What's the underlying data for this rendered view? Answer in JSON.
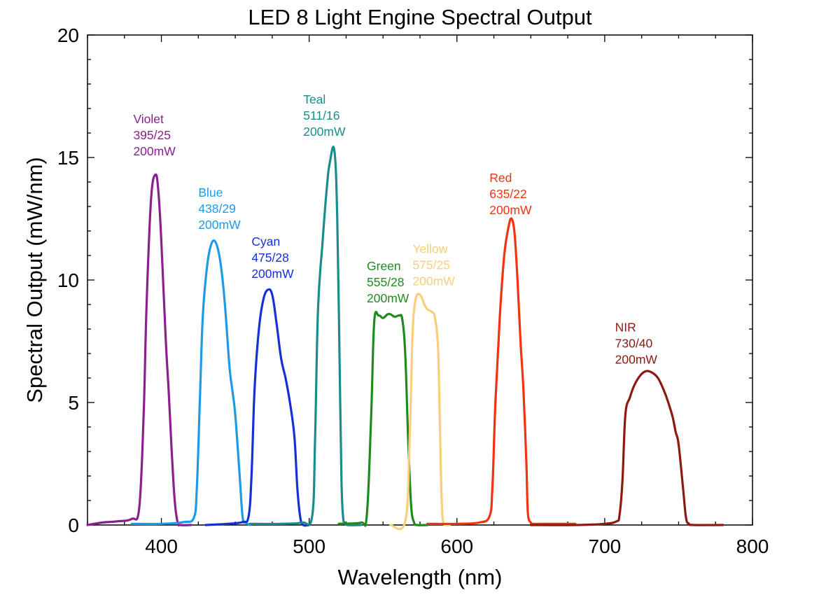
{
  "chart_data": {
    "type": "line",
    "title": "LED 8 Light Engine Spectral Output",
    "xlabel": "Wavelength (nm)",
    "ylabel": "Spectral Output (mW/nm)",
    "xlim": [
      350,
      800
    ],
    "ylim": [
      0,
      20
    ],
    "x_ticks": [
      400,
      500,
      600,
      700,
      800
    ],
    "y_ticks": [
      0,
      5,
      10,
      15,
      20
    ],
    "grid": false,
    "legend": "none",
    "series": [
      {
        "name": "Violet",
        "color": "#8B1F8E",
        "label_lines": [
          "Violet",
          "395/25",
          "200mW"
        ],
        "x": [
          350,
          360,
          370,
          380,
          385,
          388,
          390,
          393,
          396,
          398,
          400,
          403,
          405,
          407,
          409,
          411,
          413,
          420
        ],
        "y": [
          0,
          0.1,
          0.15,
          0.25,
          0.7,
          4.5,
          9.0,
          13.3,
          14.3,
          13.6,
          11.5,
          7.5,
          5.4,
          3.0,
          1.0,
          0.1,
          0,
          0
        ]
      },
      {
        "name": "Blue",
        "color": "#1E9BE8",
        "label_lines": [
          "Blue",
          "438/29",
          "200mW"
        ],
        "x": [
          380,
          400,
          415,
          422,
          424,
          426,
          428,
          431,
          434,
          437,
          440,
          443,
          446,
          448,
          450,
          453,
          455,
          457,
          460
        ],
        "y": [
          0.05,
          0.05,
          0.12,
          0.3,
          1.5,
          5.0,
          8.5,
          10.6,
          11.5,
          11.5,
          10.7,
          9.0,
          6.5,
          5.5,
          4.5,
          2.0,
          0.3,
          0.1,
          0
        ]
      },
      {
        "name": "Cyan",
        "color": "#1431D6",
        "label_lines": [
          "Cyan",
          "475/28",
          "200mW"
        ],
        "x": [
          430,
          445,
          455,
          459,
          461,
          463,
          466,
          469,
          472,
          475,
          478,
          481,
          484,
          487,
          490,
          492,
          494,
          496,
          500
        ],
        "y": [
          0,
          0.05,
          0.12,
          0.35,
          2.0,
          5.5,
          8.0,
          9.2,
          9.6,
          9.4,
          8.2,
          6.8,
          6.0,
          5.0,
          3.6,
          1.5,
          0.3,
          0,
          0
        ]
      },
      {
        "name": "Teal",
        "color": "#1A8C8C",
        "label_lines": [
          "Teal",
          "511/16",
          "200mW"
        ],
        "x": [
          460,
          480,
          495,
          502,
          504,
          506,
          509,
          512,
          514,
          517,
          519,
          521,
          522,
          523,
          524,
          526,
          535
        ],
        "y": [
          0.05,
          0.05,
          0.1,
          0.35,
          3.5,
          8.8,
          11.5,
          13.8,
          14.8,
          15.3,
          12.5,
          5.0,
          1.5,
          0.3,
          0.1,
          0,
          0
        ]
      },
      {
        "name": "Green",
        "color": "#1E8B1E",
        "label_lines": [
          "Green",
          "555/28",
          "200mW"
        ],
        "x": [
          520,
          535,
          539,
          542,
          544,
          547,
          550,
          553,
          555,
          558,
          561,
          563,
          565,
          567,
          569,
          571,
          573,
          580
        ],
        "y": [
          0.05,
          0.1,
          0.4,
          4.5,
          8.3,
          8.55,
          8.45,
          8.6,
          8.6,
          8.5,
          8.55,
          8.4,
          7.0,
          3.5,
          0.8,
          0.1,
          0,
          0
        ]
      },
      {
        "name": "Yellow",
        "color": "#F8CE7A",
        "label_lines": [
          "Yellow",
          "575/25",
          "200mW"
        ],
        "x": [
          555,
          565,
          568,
          570,
          572,
          575,
          578,
          580,
          583,
          585,
          587,
          588,
          589,
          590,
          591,
          592,
          595
        ],
        "y": [
          0,
          0.15,
          3.5,
          7.8,
          9.2,
          9.4,
          9.0,
          8.8,
          8.7,
          8.5,
          7.5,
          5.5,
          2.5,
          0.5,
          0.1,
          0,
          0
        ]
      },
      {
        "name": "Red",
        "color": "#F2330F",
        "label_lines": [
          "Red",
          "635/22",
          "200mW"
        ],
        "x": [
          580,
          600,
          615,
          622,
          624,
          626,
          629,
          632,
          635,
          637,
          639,
          641,
          643,
          645,
          647,
          648,
          650,
          652,
          660,
          680
        ],
        "y": [
          0.05,
          0.05,
          0.1,
          0.35,
          1.5,
          5.0,
          8.5,
          11.0,
          12.2,
          12.5,
          11.9,
          10.0,
          7.5,
          5.5,
          2.5,
          0.5,
          0.1,
          0.05,
          0.05,
          0.05
        ]
      },
      {
        "name": "NIR",
        "color": "#8B1A10",
        "label_lines": [
          "NIR",
          "730/40",
          "200mW"
        ],
        "x": [
          650,
          680,
          700,
          708,
          710,
          712,
          714,
          717,
          720,
          724,
          728,
          732,
          736,
          740,
          743,
          746,
          748,
          750,
          753,
          755,
          757,
          760,
          780
        ],
        "y": [
          0,
          0,
          0.05,
          0.15,
          0.4,
          1.8,
          4.5,
          5.2,
          5.7,
          6.1,
          6.28,
          6.22,
          6.0,
          5.5,
          5.0,
          4.4,
          3.8,
          3.3,
          1.5,
          0.3,
          0.05,
          0,
          0
        ]
      }
    ],
    "annotations": [
      {
        "series": "Violet",
        "at": [
          381,
          16.4
        ]
      },
      {
        "series": "Blue",
        "at": [
          425,
          13.4
        ]
      },
      {
        "series": "Cyan",
        "at": [
          461,
          11.4
        ]
      },
      {
        "series": "Teal",
        "at": [
          496,
          17.2
        ]
      },
      {
        "series": "Green",
        "at": [
          539,
          10.4
        ]
      },
      {
        "series": "Yellow",
        "at": [
          570,
          11.1
        ]
      },
      {
        "series": "Red",
        "at": [
          622,
          14.0
        ]
      },
      {
        "series": "NIR",
        "at": [
          707,
          7.9
        ]
      }
    ]
  }
}
